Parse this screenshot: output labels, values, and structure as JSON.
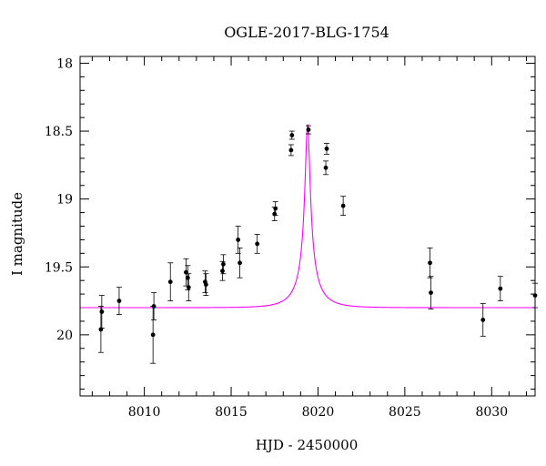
{
  "chart_data": {
    "type": "scatter",
    "title": "OGLE-2017-BLG-1754",
    "xlabel": "HJD - 2450000",
    "ylabel": "I magnitude",
    "xlim": [
      8006.3,
      8032.5
    ],
    "ylim": [
      20.45,
      17.95
    ],
    "y_inverted": true,
    "grid": false,
    "x_ticks": [
      8010,
      8015,
      8020,
      8025,
      8030
    ],
    "x_tick_labels": [
      "8010",
      "8015",
      "8020",
      "8025",
      "8030"
    ],
    "y_ticks": [
      18,
      18.5,
      19,
      19.5,
      20
    ],
    "y_tick_labels": [
      "18",
      "18.5",
      "19",
      "19.5",
      "20"
    ],
    "colors": {
      "points": "#000000",
      "model": "#ff00ff",
      "axes": "#000000"
    },
    "series": [
      {
        "type": "scatter-errorbar",
        "points": [
          {
            "x": 8007.5,
            "y": 19.96,
            "err": 0.17
          },
          {
            "x": 8007.55,
            "y": 19.83,
            "err": 0.12
          },
          {
            "x": 8008.55,
            "y": 19.75,
            "err": 0.1
          },
          {
            "x": 8010.5,
            "y": 20.0,
            "err": 0.21
          },
          {
            "x": 8010.55,
            "y": 19.79,
            "err": 0.1
          },
          {
            "x": 8011.5,
            "y": 19.61,
            "err": 0.14
          },
          {
            "x": 8012.4,
            "y": 19.54,
            "err": 0.1
          },
          {
            "x": 8012.5,
            "y": 19.58,
            "err": 0.09
          },
          {
            "x": 8012.55,
            "y": 19.65,
            "err": 0.1
          },
          {
            "x": 8013.5,
            "y": 19.61,
            "err": 0.08
          },
          {
            "x": 8013.55,
            "y": 19.63,
            "err": 0.08
          },
          {
            "x": 8014.5,
            "y": 19.53,
            "err": 0.07
          },
          {
            "x": 8014.55,
            "y": 19.48,
            "err": 0.07
          },
          {
            "x": 8015.4,
            "y": 19.3,
            "err": 0.1
          },
          {
            "x": 8015.5,
            "y": 19.47,
            "err": 0.11
          },
          {
            "x": 8016.5,
            "y": 19.33,
            "err": 0.07
          },
          {
            "x": 8017.5,
            "y": 19.11,
            "err": 0.05
          },
          {
            "x": 8017.55,
            "y": 19.07,
            "err": 0.05
          },
          {
            "x": 8018.45,
            "y": 18.64,
            "err": 0.04
          },
          {
            "x": 8018.5,
            "y": 18.53,
            "err": 0.03
          },
          {
            "x": 8019.45,
            "y": 18.49,
            "err": 0.03
          },
          {
            "x": 8020.45,
            "y": 18.77,
            "err": 0.05
          },
          {
            "x": 8020.5,
            "y": 18.63,
            "err": 0.04
          },
          {
            "x": 8021.45,
            "y": 19.05,
            "err": 0.07
          },
          {
            "x": 8026.45,
            "y": 19.47,
            "err": 0.11
          },
          {
            "x": 8026.5,
            "y": 19.69,
            "err": 0.12
          },
          {
            "x": 8029.5,
            "y": 19.89,
            "err": 0.12
          },
          {
            "x": 8030.5,
            "y": 19.66,
            "err": 0.09
          },
          {
            "x": 8032.5,
            "y": 19.71,
            "err": 0.09
          }
        ]
      },
      {
        "type": "line",
        "model": {
          "t0": 8019.4,
          "tE": 1.35,
          "u0": 0.11,
          "I_base": 19.8,
          "I_peak": 18.45,
          "x_start": 8006.3,
          "x_end": 8032.5
        }
      }
    ]
  }
}
